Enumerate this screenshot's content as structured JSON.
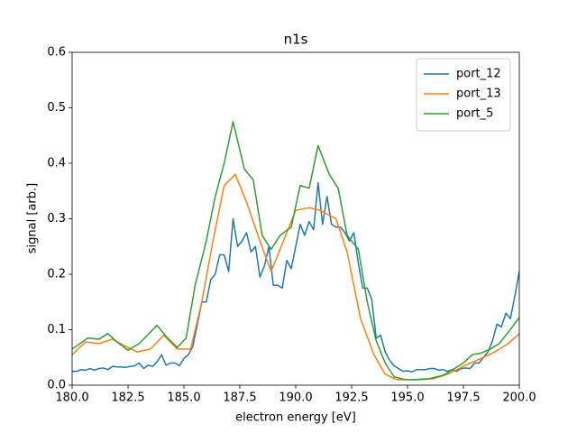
{
  "chart_data": {
    "type": "line",
    "title": "n1s",
    "xlabel": "electron energy [eV]",
    "ylabel": "signal [arb.]",
    "xlim": [
      180,
      200
    ],
    "ylim": [
      0,
      0.6
    ],
    "xticks": [
      {
        "value": 180,
        "label": "180.0"
      },
      {
        "value": 182.5,
        "label": "182.5"
      },
      {
        "value": 185,
        "label": "185.0"
      },
      {
        "value": 187.5,
        "label": "187.5"
      },
      {
        "value": 190,
        "label": "190.0"
      },
      {
        "value": 192.5,
        "label": "192.5"
      },
      {
        "value": 195,
        "label": "195.0"
      },
      {
        "value": 197.5,
        "label": "197.5"
      },
      {
        "value": 200,
        "label": "200.0"
      }
    ],
    "yticks": [
      {
        "value": 0,
        "label": "0.0"
      },
      0.1,
      0.2,
      0.3,
      0.4,
      0.5,
      0.6
    ],
    "legend": "upper right",
    "series": [
      {
        "name": "port_12",
        "color": "#1f77b4",
        "x": [
          180.0,
          180.2,
          180.4,
          180.6,
          180.8,
          181.0,
          181.2,
          181.4,
          181.6,
          181.8,
          182.0,
          182.2,
          182.4,
          182.6,
          182.8,
          183.0,
          183.2,
          183.4,
          183.6,
          183.8,
          184.0,
          184.2,
          184.4,
          184.6,
          184.8,
          185.0,
          185.2,
          185.4,
          185.6,
          185.8,
          186.0,
          186.2,
          186.4,
          186.6,
          186.8,
          187.0,
          187.2,
          187.4,
          187.6,
          187.8,
          188.0,
          188.2,
          188.4,
          188.6,
          188.8,
          189.0,
          189.2,
          189.4,
          189.6,
          189.8,
          190.0,
          190.2,
          190.4,
          190.6,
          190.8,
          191.0,
          191.2,
          191.4,
          191.6,
          191.8,
          192.0,
          192.2,
          192.4,
          192.6,
          192.8,
          193.0,
          193.2,
          193.4,
          193.6,
          193.8,
          194.0,
          194.2,
          194.4,
          194.6,
          194.8,
          195.0,
          195.2,
          195.4,
          195.6,
          195.8,
          196.0,
          196.2,
          196.4,
          196.6,
          196.8,
          197.0,
          197.2,
          197.4,
          197.6,
          197.8,
          198.0,
          198.2,
          198.4,
          198.6,
          198.8,
          199.0,
          199.2,
          199.4,
          199.6,
          199.8,
          200.0
        ],
        "values": [
          0.025,
          0.025,
          0.028,
          0.027,
          0.03,
          0.027,
          0.03,
          0.031,
          0.028,
          0.034,
          0.033,
          0.033,
          0.032,
          0.034,
          0.035,
          0.04,
          0.03,
          0.036,
          0.034,
          0.042,
          0.055,
          0.036,
          0.04,
          0.04,
          0.035,
          0.048,
          0.055,
          0.07,
          0.11,
          0.15,
          0.15,
          0.19,
          0.2,
          0.235,
          0.235,
          0.205,
          0.3,
          0.25,
          0.26,
          0.275,
          0.24,
          0.25,
          0.195,
          0.215,
          0.25,
          0.18,
          0.18,
          0.175,
          0.225,
          0.21,
          0.25,
          0.29,
          0.27,
          0.295,
          0.28,
          0.365,
          0.29,
          0.34,
          0.29,
          0.285,
          0.285,
          0.275,
          0.26,
          0.275,
          0.22,
          0.175,
          0.175,
          0.155,
          0.085,
          0.09,
          0.06,
          0.045,
          0.035,
          0.03,
          0.025,
          0.026,
          0.024,
          0.028,
          0.028,
          0.028,
          0.03,
          0.03,
          0.027,
          0.028,
          0.025,
          0.028,
          0.025,
          0.03,
          0.031,
          0.03,
          0.04,
          0.04,
          0.05,
          0.06,
          0.08,
          0.11,
          0.105,
          0.13,
          0.12,
          0.16,
          0.205
        ]
      },
      {
        "name": "port_13",
        "color": "#ff7f0e",
        "x": [
          180.0,
          180.6,
          181.2,
          181.8,
          182.3,
          182.9,
          183.5,
          184.1,
          184.7,
          185.3,
          185.8,
          186.3,
          186.8,
          187.3,
          187.8,
          188.4,
          188.9,
          189.5,
          190.0,
          190.6,
          191.1,
          191.8,
          192.3,
          192.9,
          193.5,
          194.0,
          194.5,
          195.1,
          195.6,
          196.2,
          196.8,
          197.3,
          197.8,
          198.4,
          198.9,
          199.5,
          200.0
        ],
        "values": [
          0.055,
          0.078,
          0.075,
          0.083,
          0.072,
          0.06,
          0.065,
          0.09,
          0.065,
          0.065,
          0.15,
          0.26,
          0.36,
          0.38,
          0.33,
          0.26,
          0.205,
          0.265,
          0.315,
          0.32,
          0.315,
          0.3,
          0.24,
          0.12,
          0.055,
          0.02,
          0.01,
          0.01,
          0.01,
          0.012,
          0.02,
          0.03,
          0.04,
          0.05,
          0.06,
          0.075,
          0.093
        ]
      },
      {
        "name": "port_5",
        "color": "#2ca02c",
        "x": [
          180.0,
          180.7,
          181.2,
          181.6,
          182.0,
          182.5,
          183.0,
          183.8,
          184.2,
          184.7,
          185.1,
          185.5,
          186.0,
          186.4,
          186.8,
          187.2,
          187.7,
          188.1,
          188.5,
          188.9,
          189.3,
          189.8,
          190.2,
          190.6,
          191.0,
          191.5,
          191.9,
          192.3,
          192.8,
          193.2,
          193.6,
          194.0,
          194.4,
          194.9,
          195.3,
          196.0,
          196.6,
          197.1,
          197.5,
          197.9,
          198.3,
          198.7,
          199.1,
          199.5,
          200.0
        ],
        "values": [
          0.065,
          0.085,
          0.083,
          0.093,
          0.078,
          0.063,
          0.075,
          0.108,
          0.088,
          0.068,
          0.085,
          0.18,
          0.26,
          0.34,
          0.4,
          0.475,
          0.39,
          0.37,
          0.27,
          0.245,
          0.27,
          0.285,
          0.36,
          0.355,
          0.432,
          0.38,
          0.355,
          0.27,
          0.245,
          0.15,
          0.08,
          0.04,
          0.015,
          0.01,
          0.01,
          0.012,
          0.018,
          0.03,
          0.04,
          0.055,
          0.058,
          0.065,
          0.075,
          0.095,
          0.122
        ]
      }
    ]
  }
}
